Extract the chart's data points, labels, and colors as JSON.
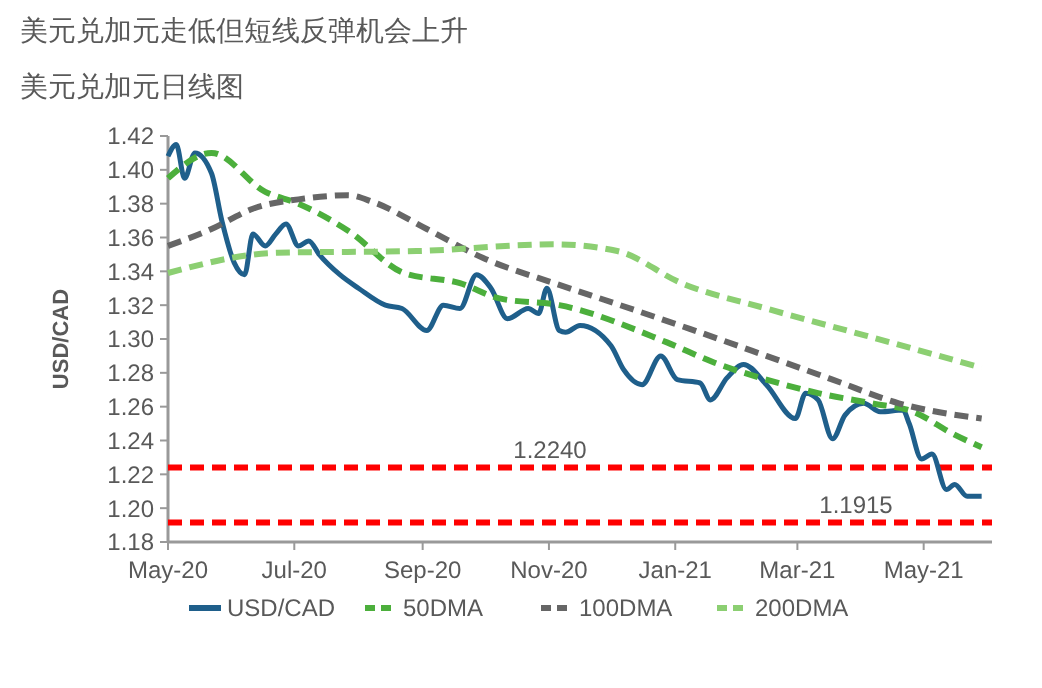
{
  "chart_data": {
    "type": "line",
    "title": "美元兑加元走低但短线反弹机会上升",
    "subtitle": "美元兑加元日线图",
    "ylabel": "USD/CAD",
    "xlim": [
      "2020-05-01",
      "2021-06-03"
    ],
    "xticks": [
      {
        "value": "2020-05-01",
        "label": "May-20"
      },
      {
        "value": "2020-07-01",
        "label": "Jul-20"
      },
      {
        "value": "2020-09-01",
        "label": "Sep-20"
      },
      {
        "value": "2020-11-01",
        "label": "Nov-20"
      },
      {
        "value": "2021-01-01",
        "label": "Jan-21"
      },
      {
        "value": "2021-03-01",
        "label": "Mar-21"
      },
      {
        "value": "2021-05-01",
        "label": "May-21"
      }
    ],
    "ylim": [
      1.18,
      1.42
    ],
    "yticks": [
      {
        "value": 1.18,
        "label": "1.18"
      },
      {
        "value": 1.2,
        "label": "1.20"
      },
      {
        "value": 1.22,
        "label": "1.22"
      },
      {
        "value": 1.24,
        "label": "1.24"
      },
      {
        "value": 1.26,
        "label": "1.26"
      },
      {
        "value": 1.28,
        "label": "1.28"
      },
      {
        "value": 1.3,
        "label": "1.30"
      },
      {
        "value": 1.32,
        "label": "1.32"
      },
      {
        "value": 1.34,
        "label": "1.34"
      },
      {
        "value": 1.36,
        "label": "1.36"
      },
      {
        "value": 1.38,
        "label": "1.38"
      },
      {
        "value": 1.4,
        "label": "1.40"
      },
      {
        "value": 1.42,
        "label": "1.42"
      }
    ],
    "grid": false,
    "legend": "bottom",
    "series": [
      {
        "name": "USD/CAD",
        "color": "#1f5f8b",
        "line_style": "solid",
        "x": [
          "2020-05-01",
          "2020-05-05",
          "2020-05-09",
          "2020-05-14",
          "2020-05-22",
          "2020-05-27",
          "2020-06-02",
          "2020-06-07",
          "2020-06-11",
          "2020-06-17",
          "2020-06-22",
          "2020-06-27",
          "2020-07-03",
          "2020-07-08",
          "2020-07-13",
          "2020-07-23",
          "2020-08-01",
          "2020-08-14",
          "2020-08-22",
          "2020-09-03",
          "2020-09-11",
          "2020-09-19",
          "2020-09-27",
          "2020-10-04",
          "2020-10-12",
          "2020-10-22",
          "2020-10-27",
          "2020-10-31",
          "2020-11-06",
          "2020-11-09",
          "2020-11-16",
          "2020-12-01",
          "2020-12-07",
          "2020-12-16",
          "2020-12-25",
          "2021-01-02",
          "2021-01-13",
          "2021-01-18",
          "2021-01-26",
          "2021-02-03",
          "2021-02-14",
          "2021-02-28",
          "2021-03-05",
          "2021-03-11",
          "2021-03-18",
          "2021-03-24",
          "2021-04-02",
          "2021-04-10",
          "2021-04-21",
          "2021-04-24",
          "2021-04-30",
          "2021-05-05",
          "2021-05-12",
          "2021-05-16",
          "2021-05-22",
          "2021-05-29"
        ],
        "values": [
          1.408,
          1.415,
          1.395,
          1.41,
          1.398,
          1.37,
          1.345,
          1.338,
          1.362,
          1.355,
          1.362,
          1.368,
          1.355,
          1.358,
          1.35,
          1.338,
          1.33,
          1.32,
          1.318,
          1.305,
          1.32,
          1.318,
          1.338,
          1.33,
          1.312,
          1.318,
          1.315,
          1.33,
          1.305,
          1.304,
          1.308,
          1.296,
          1.282,
          1.273,
          1.29,
          1.276,
          1.274,
          1.264,
          1.277,
          1.285,
          1.273,
          1.253,
          1.268,
          1.264,
          1.241,
          1.255,
          1.262,
          1.257,
          1.258,
          1.25,
          1.229,
          1.232,
          1.211,
          1.214,
          1.207,
          1.207
        ]
      },
      {
        "name": "50DMA",
        "color": "#4caf3c",
        "line_style": "dashed",
        "x": [
          "2020-05-01",
          "2020-05-22",
          "2020-06-17",
          "2020-07-03",
          "2020-07-27",
          "2020-08-23",
          "2020-09-19",
          "2020-10-08",
          "2020-11-06",
          "2020-12-28",
          "2021-01-20",
          "2021-02-14",
          "2021-03-11",
          "2021-04-06",
          "2021-04-26",
          "2021-05-15",
          "2021-05-29"
        ],
        "values": [
          1.395,
          1.41,
          1.387,
          1.38,
          1.364,
          1.339,
          1.333,
          1.324,
          1.32,
          1.298,
          1.286,
          1.276,
          1.268,
          1.262,
          1.257,
          1.244,
          1.236
        ]
      },
      {
        "name": "100DMA",
        "color": "#666666",
        "line_style": "dashed",
        "x": [
          "2020-05-01",
          "2020-05-22",
          "2020-06-11",
          "2020-07-06",
          "2020-07-27",
          "2020-08-08",
          "2020-09-03",
          "2020-09-30",
          "2020-11-06",
          "2020-12-03",
          "2021-01-08",
          "2021-02-14",
          "2021-03-18",
          "2021-04-19",
          "2021-05-29"
        ],
        "values": [
          1.355,
          1.365,
          1.377,
          1.383,
          1.385,
          1.381,
          1.365,
          1.348,
          1.332,
          1.321,
          1.306,
          1.29,
          1.276,
          1.262,
          1.253
        ]
      },
      {
        "name": "200DMA",
        "color": "#8ccf72",
        "line_style": "dashed",
        "x": [
          "2020-05-01",
          "2020-06-23",
          "2020-08-29",
          "2020-11-03",
          "2020-12-04",
          "2021-01-04",
          "2021-02-14",
          "2021-04-03",
          "2021-05-29"
        ],
        "values": [
          1.339,
          1.351,
          1.352,
          1.356,
          1.352,
          1.333,
          1.318,
          1.302,
          1.283
        ]
      }
    ],
    "ref_lines": [
      {
        "axis": "y",
        "value": 1.224,
        "label": "1.2240",
        "color": "#ff0000",
        "line_style": "dashed"
      },
      {
        "axis": "y",
        "value": 1.1915,
        "label": "1.1915",
        "color": "#ff0000",
        "line_style": "dashed"
      }
    ]
  }
}
